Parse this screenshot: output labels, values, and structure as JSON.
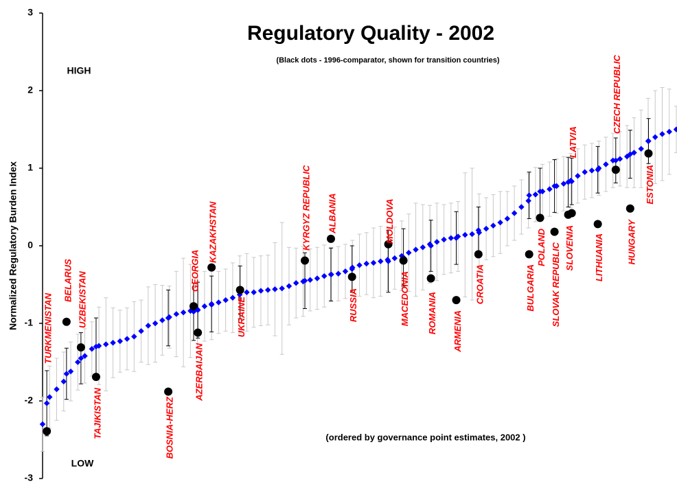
{
  "chart_data": {
    "type": "errorbar",
    "title": "Regulatory Quality - 2002",
    "subtitle": "(Black dots -  1996-comparator, shown for transition countries)",
    "y_label": "Normalized Regulatory Burden Index",
    "annotations": [
      "HIGH",
      "LOW",
      "(ordered by governance point estimates, 2002 )"
    ],
    "xlim": [
      0,
      180
    ],
    "ylim": [
      -3,
      3
    ],
    "yticks": [
      -3,
      -2,
      -1,
      0,
      1,
      2,
      3
    ],
    "grid": false,
    "estimates": {
      "color": "#0000ff",
      "error_color": "#c8c8c8",
      "x": [
        0,
        2,
        4,
        6,
        8,
        10,
        12,
        14,
        16,
        18,
        20,
        22,
        24,
        26,
        28,
        30,
        32,
        34,
        36,
        38,
        40,
        42,
        44,
        46,
        48,
        50,
        52,
        54,
        56,
        58,
        60,
        62,
        64,
        66,
        68,
        70,
        72,
        74,
        76,
        78,
        80,
        82,
        84,
        86,
        88,
        90,
        92,
        94,
        96,
        98,
        100,
        102,
        104,
        106,
        108,
        110,
        112,
        114,
        116,
        118,
        120,
        122,
        124,
        126,
        128,
        130,
        132,
        134,
        136,
        138,
        140,
        142,
        144,
        146,
        148,
        150,
        152,
        154,
        156,
        158,
        160,
        162,
        164,
        166,
        168,
        170,
        172,
        174,
        176,
        178,
        180
      ],
      "values": [
        -2.3,
        -1.95,
        -1.85,
        -1.75,
        -1.62,
        -1.5,
        -1.42,
        -1.33,
        -1.29,
        -1.27,
        -1.25,
        -1.23,
        -1.2,
        -1.17,
        -1.1,
        -1.03,
        -1.0,
        -0.96,
        -0.92,
        -0.88,
        -0.86,
        -0.84,
        -0.82,
        -0.78,
        -0.76,
        -0.73,
        -0.7,
        -0.67,
        -0.63,
        -0.6,
        -0.6,
        -0.58,
        -0.57,
        -0.56,
        -0.55,
        -0.52,
        -0.48,
        -0.46,
        -0.44,
        -0.42,
        -0.39,
        -0.37,
        -0.36,
        -0.33,
        -0.28,
        -0.25,
        -0.23,
        -0.22,
        -0.2,
        -0.18,
        -0.16,
        -0.13,
        -0.09,
        -0.05,
        -0.02,
        0.02,
        0.05,
        0.08,
        0.1,
        0.12,
        0.14,
        0.15,
        0.17,
        0.22,
        0.26,
        0.3,
        0.35,
        0.42,
        0.5,
        0.58,
        0.66,
        0.7,
        0.73,
        0.77,
        0.8,
        0.84,
        0.9,
        0.95,
        0.97,
        1.0,
        1.05,
        1.1,
        1.12,
        1.15,
        1.2,
        1.25,
        1.35,
        1.4,
        1.44,
        1.47,
        1.5
      ],
      "errors": [
        0.35,
        0.4,
        0.4,
        0.38,
        0.38,
        0.36,
        0.35,
        0.35,
        0.5,
        0.6,
        0.45,
        0.4,
        0.4,
        0.45,
        0.4,
        0.5,
        0.5,
        0.45,
        0.4,
        0.55,
        0.7,
        0.6,
        0.5,
        0.45,
        0.45,
        0.4,
        0.4,
        0.45,
        0.5,
        0.5,
        0.45,
        0.45,
        0.45,
        0.6,
        0.85,
        0.5,
        0.45,
        0.45,
        0.4,
        0.4,
        0.4,
        0.35,
        0.35,
        0.35,
        0.35,
        0.4,
        0.4,
        0.45,
        0.45,
        0.4,
        0.4,
        0.45,
        0.5,
        0.6,
        0.55,
        0.5,
        0.5,
        0.45,
        0.45,
        0.45,
        0.8,
        0.85,
        0.5,
        0.4,
        0.4,
        0.4,
        0.35,
        0.35,
        0.35,
        0.35,
        0.35,
        0.35,
        0.35,
        0.35,
        0.35,
        0.35,
        0.35,
        0.35,
        0.35,
        0.35,
        0.35,
        0.35,
        0.35,
        0.4,
        0.45,
        0.5,
        0.55,
        0.6,
        0.6,
        0.55,
        0.3
      ]
    },
    "countries": [
      {
        "label": "TURKMENISTAN",
        "x": 1.2,
        "value": -2.03,
        "error": 0.42,
        "value_1996": -2.39
      },
      {
        "label": "BELARUS",
        "x": 6.8,
        "value": -1.65,
        "error": 0.33,
        "value_1996": -0.98
      },
      {
        "label": "UZBEKISTAN",
        "x": 10.9,
        "value": -1.45,
        "error": 0.33,
        "value_1996": -1.31
      },
      {
        "label": "TAJIKISTAN",
        "x": 15.2,
        "value": -1.3,
        "error": 0.37,
        "value_1996": -1.69
      },
      {
        "label": "BOSNIA-HERZ",
        "x": 35.7,
        "value": -0.93,
        "error": 0.36,
        "value_1996": -1.88
      },
      {
        "label": "GEORGIA",
        "x": 42.9,
        "value": -0.85,
        "error": 0.37,
        "value_1996": -0.78
      },
      {
        "label": "AZERBAIJAN",
        "x": 44.1,
        "value": -0.83,
        "error": 0.36,
        "value_1996": -1.12
      },
      {
        "label": "KAZAKHSTAN",
        "x": 48,
        "value": -0.75,
        "error": 0.36,
        "value_1996": -0.28
      },
      {
        "label": "UKRAINE",
        "x": 56.1,
        "value": -0.6,
        "error": 0.34,
        "value_1996": -0.57
      },
      {
        "label": "KYRGYZ REPUBLIC",
        "x": 74.5,
        "value": -0.45,
        "error": 0.36,
        "value_1996": -0.19
      },
      {
        "label": "ALBANIA",
        "x": 81.9,
        "value": -0.37,
        "error": 0.34,
        "value_1996": 0.09
      },
      {
        "label": "RUSSIA",
        "x": 87.9,
        "value": -0.3,
        "error": 0.3,
        "value_1996": -0.4
      },
      {
        "label": "MOLDOVA",
        "x": 98.2,
        "value": -0.2,
        "error": 0.4,
        "value_1996": 0.02
      },
      {
        "label": "MACEDONIA",
        "x": 102.5,
        "value": -0.15,
        "error": 0.37,
        "value_1996": -0.19
      },
      {
        "label": "ROMANIA",
        "x": 110.3,
        "value": 0.0,
        "error": 0.33,
        "value_1996": -0.42
      },
      {
        "label": "ARMENIA",
        "x": 117.5,
        "value": 0.1,
        "error": 0.34,
        "value_1996": -0.7
      },
      {
        "label": "CROATIA",
        "x": 123.8,
        "value": 0.2,
        "error": 0.3,
        "value_1996": -0.11
      },
      {
        "label": "BULGARIA",
        "x": 138.2,
        "value": 0.65,
        "error": 0.3,
        "value_1996": -0.11
      },
      {
        "label": "POLAND",
        "x": 141.3,
        "value": 0.7,
        "error": 0.3,
        "value_1996": 0.36
      },
      {
        "label": "SLOVAK REPUBLIC",
        "x": 145.4,
        "value": 0.77,
        "error": 0.34,
        "value_1996": 0.18
      },
      {
        "label": "SLOVENIA",
        "x": 149.3,
        "value": 0.82,
        "error": 0.32,
        "value_1996": 0.4
      },
      {
        "label": "LATVIA",
        "x": 150.3,
        "value": 0.83,
        "error": 0.3,
        "value_1996": 0.42
      },
      {
        "label": "LITHUANIA",
        "x": 157.7,
        "value": 0.98,
        "error": 0.3,
        "value_1996": 0.28
      },
      {
        "label": "CZECH REPUBLIC",
        "x": 162.8,
        "value": 1.1,
        "error": 0.29,
        "value_1996": 0.98
      },
      {
        "label": "HUNGARY",
        "x": 166.9,
        "value": 1.18,
        "error": 0.31,
        "value_1996": 0.48
      },
      {
        "label": "ESTONIA",
        "x": 172.1,
        "value": 1.35,
        "error": 0.29,
        "value_1996": 1.19
      }
    ],
    "label_color": "#ff0000",
    "dot_color": "#000000"
  }
}
